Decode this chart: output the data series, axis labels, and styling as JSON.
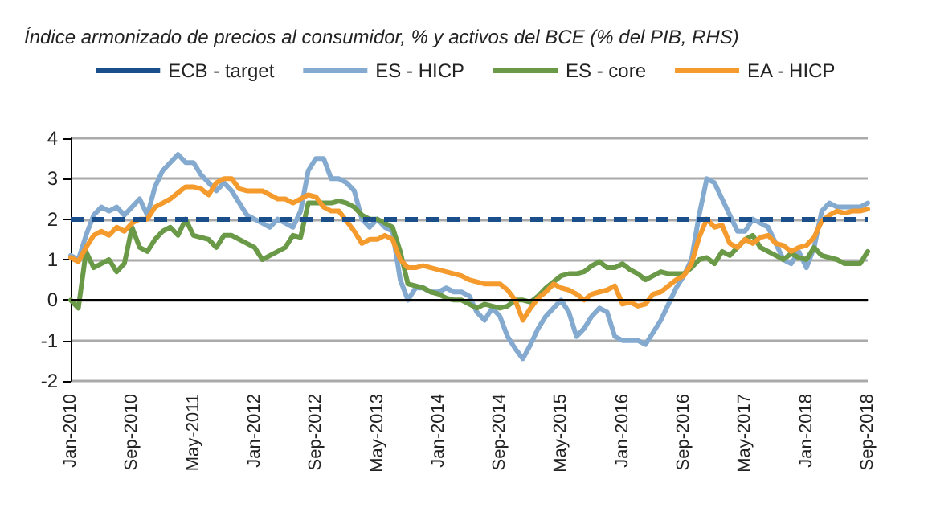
{
  "chart_data": {
    "type": "line",
    "title": "Índice armonizado de precios al consumidor, % y activos del BCE (% del PIB, RHS)",
    "categories": [
      "Jan-2010",
      null,
      null,
      null,
      null,
      null,
      null,
      null,
      "Sep-2010",
      null,
      null,
      null,
      null,
      null,
      null,
      null,
      "May-2011",
      null,
      null,
      null,
      null,
      null,
      null,
      null,
      "Jan-2012",
      null,
      null,
      null,
      null,
      null,
      null,
      null,
      "Sep-2012",
      null,
      null,
      null,
      null,
      null,
      null,
      null,
      "May-2013",
      null,
      null,
      null,
      null,
      null,
      null,
      null,
      "Jan-2014",
      null,
      null,
      null,
      null,
      null,
      null,
      null,
      "Sep-2014",
      null,
      null,
      null,
      null,
      null,
      null,
      null,
      "May-2015",
      null,
      null,
      null,
      null,
      null,
      null,
      null,
      "Jan-2016",
      null,
      null,
      null,
      null,
      null,
      null,
      null,
      "Sep-2016",
      null,
      null,
      null,
      null,
      null,
      null,
      null,
      "May-2017",
      null,
      null,
      null,
      null,
      null,
      null,
      null,
      "Jan-2018",
      null,
      null,
      null,
      null,
      null,
      null,
      null,
      "Sep-2018"
    ],
    "series": [
      {
        "name": "ES - HICP",
        "color": "#84aad0",
        "values": [
          1.1,
          1.0,
          1.6,
          2.1,
          2.3,
          2.2,
          2.3,
          2.1,
          2.3,
          2.5,
          2.1,
          2.8,
          3.2,
          3.4,
          3.6,
          3.4,
          3.4,
          3.1,
          2.9,
          2.7,
          2.9,
          2.7,
          2.4,
          2.1,
          2.0,
          1.9,
          1.8,
          2.0,
          1.9,
          1.8,
          2.2,
          3.2,
          3.5,
          3.5,
          3.0,
          3.0,
          2.9,
          2.7,
          2.0,
          1.8,
          2.0,
          1.8,
          1.7,
          0.5,
          0.0,
          0.3,
          0.3,
          0.2,
          0.2,
          0.3,
          0.2,
          0.2,
          0.1,
          -0.3,
          -0.5,
          -0.2,
          -0.4,
          -0.9,
          -1.2,
          -1.45,
          -1.1,
          -0.7,
          -0.4,
          -0.2,
          0.0,
          -0.3,
          -0.9,
          -0.7,
          -0.4,
          -0.2,
          -0.3,
          -0.9,
          -1.0,
          -1.0,
          -1.0,
          -1.1,
          -0.8,
          -0.5,
          -0.1,
          0.3,
          0.6,
          1.0,
          2.1,
          3.0,
          2.9,
          2.5,
          2.1,
          1.7,
          1.7,
          2.0,
          1.9,
          1.8,
          1.4,
          1.0,
          0.9,
          1.2,
          0.8,
          1.3,
          2.2,
          2.4,
          2.3,
          2.3,
          2.3,
          2.3,
          2.4
        ]
      },
      {
        "name": "ES - core",
        "color": "#6a9a48",
        "values": [
          0.0,
          -0.2,
          1.2,
          0.8,
          0.9,
          1.0,
          0.7,
          0.9,
          1.8,
          1.3,
          1.2,
          1.5,
          1.7,
          1.8,
          1.6,
          2.0,
          1.6,
          1.55,
          1.5,
          1.3,
          1.6,
          1.6,
          1.5,
          1.4,
          1.3,
          1.0,
          1.1,
          1.2,
          1.3,
          1.6,
          1.55,
          2.4,
          2.4,
          2.4,
          2.4,
          2.45,
          2.4,
          2.3,
          2.1,
          2.0,
          2.0,
          1.9,
          1.8,
          1.2,
          0.4,
          0.35,
          0.3,
          0.2,
          0.15,
          0.05,
          0.0,
          0.0,
          -0.1,
          -0.2,
          -0.1,
          -0.15,
          -0.2,
          -0.15,
          0.0,
          0.0,
          -0.05,
          0.1,
          0.3,
          0.45,
          0.6,
          0.65,
          0.65,
          0.7,
          0.85,
          0.95,
          0.8,
          0.8,
          0.9,
          0.75,
          0.65,
          0.5,
          0.6,
          0.7,
          0.65,
          0.65,
          0.65,
          0.8,
          1.0,
          1.05,
          0.9,
          1.2,
          1.1,
          1.3,
          1.5,
          1.6,
          1.3,
          1.2,
          1.1,
          1.0,
          1.15,
          1.05,
          1.0,
          1.3,
          1.1,
          1.05,
          1.0,
          0.9,
          0.9,
          0.9,
          1.2
        ]
      },
      {
        "name": "EA - HICP",
        "color": "#f59b2d",
        "values": [
          1.05,
          0.95,
          1.3,
          1.6,
          1.7,
          1.6,
          1.8,
          1.7,
          1.9,
          2.0,
          2.0,
          2.3,
          2.4,
          2.5,
          2.65,
          2.8,
          2.8,
          2.75,
          2.6,
          2.9,
          3.0,
          3.0,
          2.75,
          2.7,
          2.7,
          2.7,
          2.6,
          2.5,
          2.5,
          2.4,
          2.5,
          2.6,
          2.55,
          2.3,
          2.2,
          2.2,
          1.95,
          1.7,
          1.4,
          1.5,
          1.5,
          1.6,
          1.5,
          1.0,
          0.8,
          0.8,
          0.85,
          0.8,
          0.75,
          0.7,
          0.65,
          0.6,
          0.5,
          0.45,
          0.4,
          0.4,
          0.4,
          0.25,
          0.0,
          -0.5,
          -0.2,
          0.05,
          0.2,
          0.4,
          0.3,
          0.25,
          0.15,
          0.0,
          0.15,
          0.2,
          0.25,
          0.35,
          -0.1,
          -0.05,
          -0.15,
          -0.1,
          0.15,
          0.2,
          0.35,
          0.5,
          0.6,
          0.9,
          1.55,
          2.0,
          1.8,
          1.85,
          1.4,
          1.3,
          1.5,
          1.4,
          1.55,
          1.6,
          1.4,
          1.35,
          1.2,
          1.3,
          1.35,
          1.55,
          1.95,
          2.1,
          2.2,
          2.15,
          2.2,
          2.2,
          2.25
        ]
      }
    ],
    "ref_lines": [
      {
        "axis": "y",
        "value": 2,
        "label": "ECB - target",
        "color": "#1b4f8c",
        "line_style": "dashed"
      },
      {
        "axis": "y",
        "value": 0,
        "color": "#000000",
        "line_style": "solid"
      }
    ],
    "ylim": [
      -2,
      4
    ],
    "yticks": [
      -2,
      -1,
      0,
      1,
      2,
      3,
      4
    ],
    "grid": "y",
    "legend": "top",
    "marker": "none",
    "line_style": "solid"
  }
}
